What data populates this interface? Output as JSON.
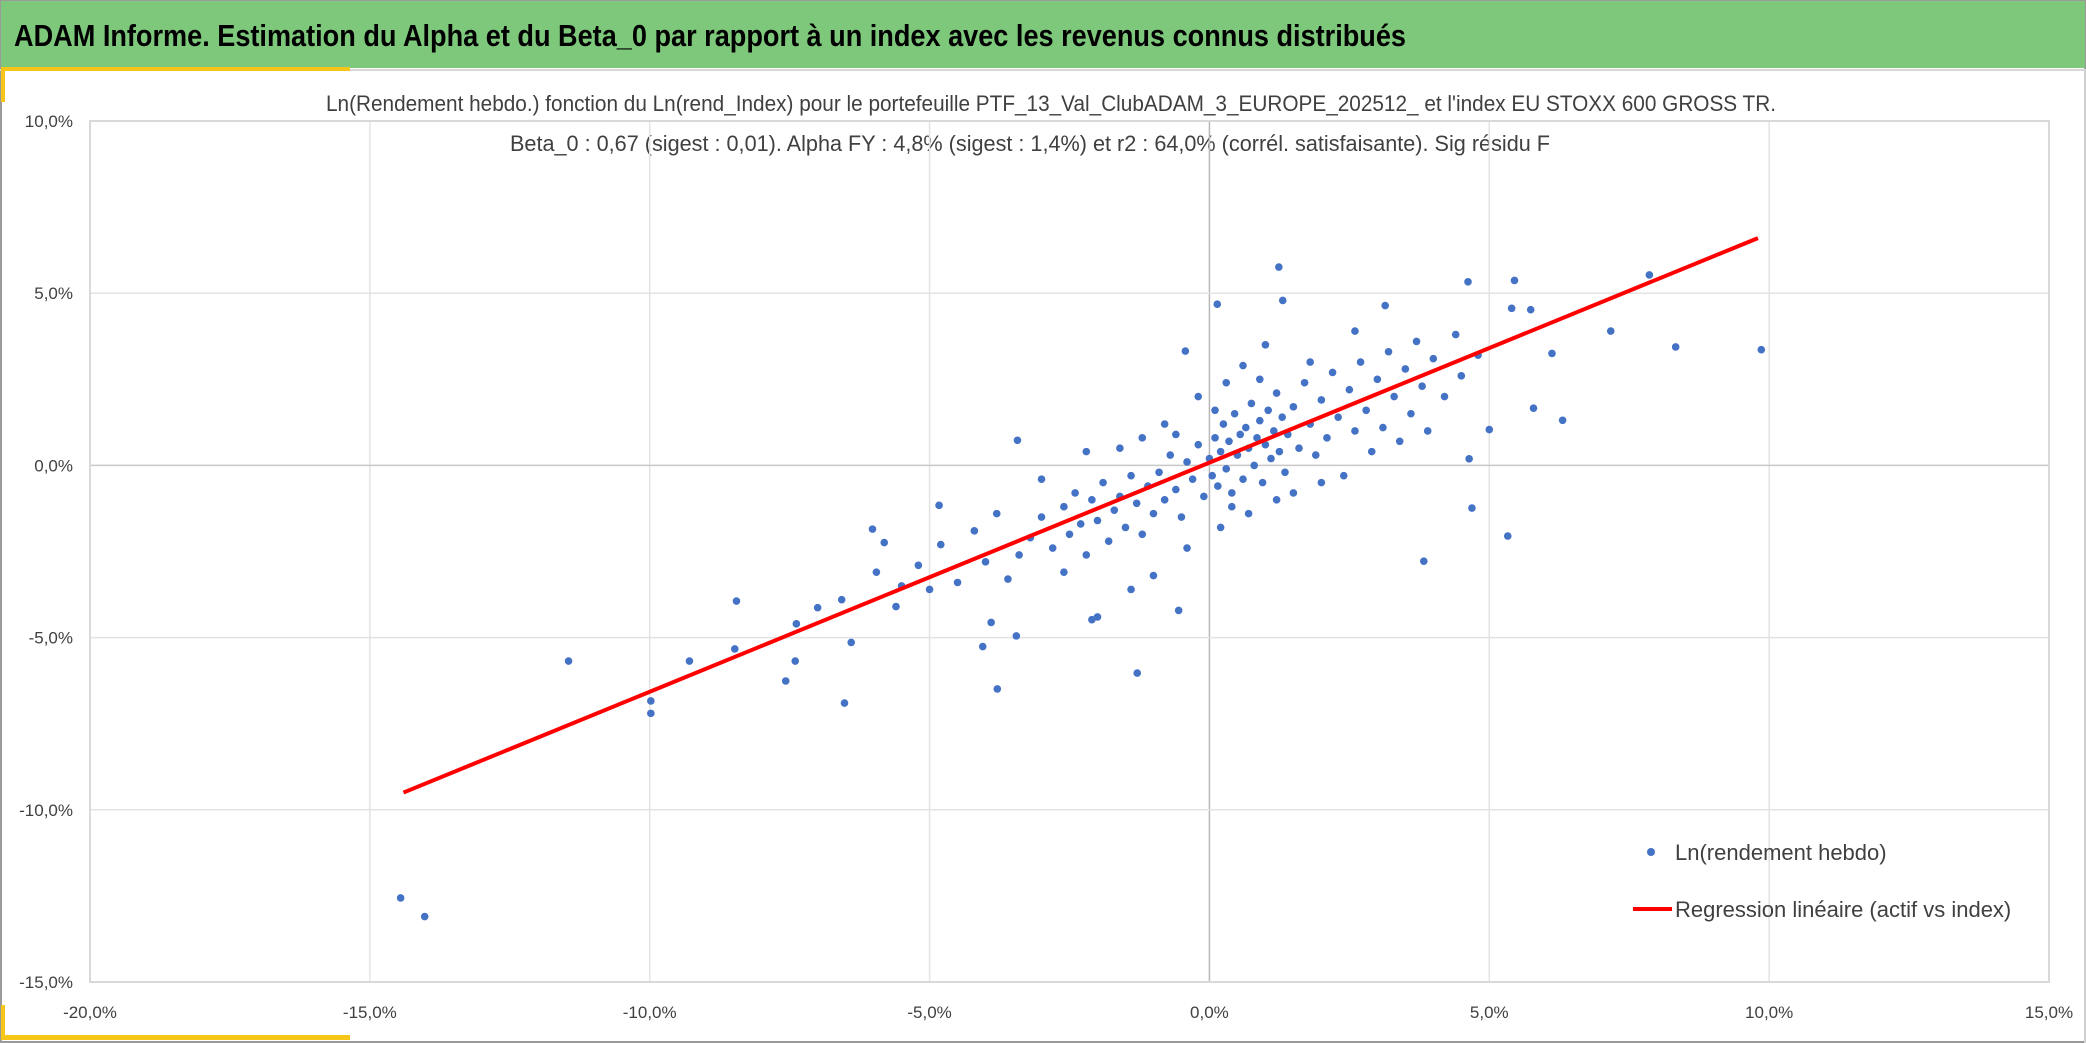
{
  "header": {
    "title": "ADAM Informe. Estimation du Alpha et du Beta_0 par rapport à un index avec les revenus connus distribués",
    "bg_color": "#7ec87c",
    "accent_color": "#f5c518"
  },
  "chart_data": {
    "type": "scatter",
    "title": "Ln(Rendement hebdo.) fonction du Ln(rend_Index) pour le portefeuille PTF_13_Val_ClubADAM_3_EUROPE_202512_ et l'index EU STOXX 600 GROSS TR.",
    "subtitle": "Beta_0 : 0,67 (sigest : 0,01). Alpha FY : 4,8% (sigest : 1,4%) et r2 : 64,0% (corrél. satisfaisante). Sig résidu F",
    "xlabel": "",
    "ylabel": "",
    "xlim": [
      -20,
      15
    ],
    "ylim": [
      -15,
      10
    ],
    "grid": true,
    "legend_position": "bottom-right",
    "x_ticks": [
      "-20,0%",
      "-15,0%",
      "-10,0%",
      "-5,0%",
      "0,0%",
      "5,0%",
      "10,0%",
      "15,0%"
    ],
    "x_tick_values": [
      -20,
      -15,
      -10,
      -5,
      0,
      5,
      10,
      15
    ],
    "y_ticks": [
      "10,0%",
      "5,0%",
      "0,0%",
      "-5,0%",
      "-10,0%",
      "-15,0%"
    ],
    "y_tick_values": [
      10,
      5,
      0,
      -5,
      -10,
      -15
    ],
    "series": [
      {
        "name": "Ln(rendement hebdo)",
        "type": "scatter",
        "color": "#4472c4",
        "points": [
          [
            -14.45,
            -12.56
          ],
          [
            -14.02,
            -13.1
          ],
          [
            -11.45,
            -5.68
          ],
          [
            -9.98,
            -6.84
          ],
          [
            -9.98,
            -7.2
          ],
          [
            -9.29,
            -5.68
          ],
          [
            -8.45,
            -3.94
          ],
          [
            -8.48,
            -5.33
          ],
          [
            -7.57,
            -6.26
          ],
          [
            -7.38,
            -4.6
          ],
          [
            -7.4,
            -5.68
          ],
          [
            -6.52,
            -6.9
          ],
          [
            -6.4,
            -5.14
          ],
          [
            -6.57,
            -3.9
          ],
          [
            -7.0,
            -4.13
          ],
          [
            -6.02,
            -1.85
          ],
          [
            -5.95,
            -3.1
          ],
          [
            -5.81,
            -2.24
          ],
          [
            -3.79,
            -6.49
          ],
          [
            -3.45,
            -4.95
          ],
          [
            -4.05,
            -5.26
          ],
          [
            -3.9,
            -4.56
          ],
          [
            -3.43,
            0.73
          ],
          [
            -4.83,
            -1.16
          ],
          [
            -1.29,
            -6.03
          ],
          [
            -0.55,
            -4.21
          ],
          [
            -2.1,
            -4.48
          ],
          [
            -0.43,
            3.32
          ],
          [
            0.14,
            4.68
          ],
          [
            1.24,
            5.76
          ],
          [
            1.31,
            4.79
          ],
          [
            3.14,
            4.64
          ],
          [
            4.62,
            5.33
          ],
          [
            5.45,
            5.37
          ],
          [
            7.86,
            5.53
          ],
          [
            7.17,
            3.9
          ],
          [
            8.33,
            3.44
          ],
          [
            9.86,
            3.36
          ],
          [
            5.79,
            1.66
          ],
          [
            6.31,
            1.31
          ],
          [
            6.12,
            3.25
          ],
          [
            5.0,
            1.04
          ],
          [
            4.69,
            -1.24
          ],
          [
            5.33,
            -2.05
          ],
          [
            3.83,
            -2.78
          ],
          [
            4.64,
            0.19
          ],
          [
            5.74,
            4.52
          ],
          [
            5.4,
            4.56
          ],
          [
            -3.2,
            -2.1
          ],
          [
            -3.0,
            -1.5
          ],
          [
            -2.8,
            -2.4
          ],
          [
            -2.6,
            -1.2
          ],
          [
            -2.5,
            -2.0
          ],
          [
            -2.4,
            -0.8
          ],
          [
            -2.3,
            -1.7
          ],
          [
            -2.2,
            -2.6
          ],
          [
            -2.1,
            -1.0
          ],
          [
            -2.0,
            -1.6
          ],
          [
            -1.9,
            -0.5
          ],
          [
            -1.8,
            -2.2
          ],
          [
            -1.7,
            -1.3
          ],
          [
            -1.6,
            -0.9
          ],
          [
            -1.5,
            -1.8
          ],
          [
            -1.4,
            -0.3
          ],
          [
            -1.3,
            -1.1
          ],
          [
            -1.2,
            -2.0
          ],
          [
            -1.1,
            -0.6
          ],
          [
            -1.0,
            -1.4
          ],
          [
            -0.9,
            -0.2
          ],
          [
            -0.8,
            -1.0
          ],
          [
            -0.7,
            0.3
          ],
          [
            -0.6,
            -0.7
          ],
          [
            -0.5,
            -1.5
          ],
          [
            -0.4,
            0.1
          ],
          [
            -0.3,
            -0.4
          ],
          [
            -0.2,
            0.6
          ],
          [
            -0.1,
            -0.9
          ],
          [
            0.0,
            0.2
          ],
          [
            0.05,
            -0.3
          ],
          [
            0.1,
            0.8
          ],
          [
            0.15,
            -0.6
          ],
          [
            0.2,
            0.4
          ],
          [
            0.25,
            1.2
          ],
          [
            0.3,
            -0.1
          ],
          [
            0.35,
            0.7
          ],
          [
            0.4,
            -0.8
          ],
          [
            0.45,
            1.5
          ],
          [
            0.5,
            0.3
          ],
          [
            0.55,
            0.9
          ],
          [
            0.6,
            -0.4
          ],
          [
            0.65,
            1.1
          ],
          [
            0.7,
            0.5
          ],
          [
            0.75,
            1.8
          ],
          [
            0.8,
            0.0
          ],
          [
            0.85,
            0.8
          ],
          [
            0.9,
            1.3
          ],
          [
            0.95,
            -0.5
          ],
          [
            1.0,
            0.6
          ],
          [
            1.05,
            1.6
          ],
          [
            1.1,
            0.2
          ],
          [
            1.15,
            1.0
          ],
          [
            1.2,
            2.1
          ],
          [
            1.25,
            0.4
          ],
          [
            1.3,
            1.4
          ],
          [
            1.35,
            -0.2
          ],
          [
            1.4,
            0.9
          ],
          [
            1.5,
            1.7
          ],
          [
            1.6,
            0.5
          ],
          [
            1.7,
            2.4
          ],
          [
            1.8,
            1.2
          ],
          [
            1.9,
            0.3
          ],
          [
            2.0,
            1.9
          ],
          [
            2.1,
            0.8
          ],
          [
            2.2,
            2.7
          ],
          [
            2.3,
            1.4
          ],
          [
            2.4,
            -0.3
          ],
          [
            2.5,
            2.2
          ],
          [
            2.6,
            1.0
          ],
          [
            2.7,
            3.0
          ],
          [
            2.8,
            1.6
          ],
          [
            2.9,
            0.4
          ],
          [
            3.0,
            2.5
          ],
          [
            3.1,
            1.1
          ],
          [
            3.2,
            3.3
          ],
          [
            3.3,
            2.0
          ],
          [
            3.4,
            0.7
          ],
          [
            3.5,
            2.8
          ],
          [
            3.6,
            1.5
          ],
          [
            3.7,
            3.6
          ],
          [
            3.8,
            2.3
          ],
          [
            3.9,
            1.0
          ],
          [
            4.0,
            3.1
          ],
          [
            4.2,
            2.0
          ],
          [
            4.4,
            3.8
          ],
          [
            4.5,
            2.6
          ],
          [
            4.8,
            3.2
          ],
          [
            -4.0,
            -2.8
          ],
          [
            -4.2,
            -1.9
          ],
          [
            -4.5,
            -3.4
          ],
          [
            -4.8,
            -2.3
          ],
          [
            -5.0,
            -3.6
          ],
          [
            -5.2,
            -2.9
          ],
          [
            -5.5,
            -3.5
          ],
          [
            -5.6,
            -4.1
          ],
          [
            -3.6,
            -3.3
          ],
          [
            -3.8,
            -1.4
          ],
          [
            -3.4,
            -2.6
          ],
          [
            -1.2,
            0.8
          ],
          [
            -0.8,
            1.2
          ],
          [
            -1.6,
            0.5
          ],
          [
            0.3,
            2.4
          ],
          [
            0.6,
            2.9
          ],
          [
            1.0,
            3.5
          ],
          [
            -0.2,
            2.0
          ],
          [
            0.2,
            -1.8
          ],
          [
            0.7,
            -1.4
          ],
          [
            1.2,
            -1.0
          ],
          [
            -0.4,
            -2.4
          ],
          [
            -1.0,
            -3.2
          ],
          [
            -1.4,
            -3.6
          ],
          [
            -2.0,
            -4.4
          ],
          [
            -2.6,
            -3.1
          ],
          [
            1.5,
            -0.8
          ],
          [
            2.0,
            -0.5
          ],
          [
            2.6,
            3.9
          ],
          [
            1.8,
            3.0
          ],
          [
            -3.0,
            -0.4
          ],
          [
            -2.2,
            0.4
          ],
          [
            0.9,
            2.5
          ],
          [
            0.1,
            1.6
          ],
          [
            -0.6,
            0.9
          ],
          [
            0.4,
            -1.2
          ]
        ]
      },
      {
        "name": "Regression linéaire (actif vs index)",
        "type": "line",
        "color": "#ff0000",
        "x": [
          -14.4,
          9.8
        ],
        "y": [
          -9.5,
          6.6
        ]
      }
    ]
  }
}
